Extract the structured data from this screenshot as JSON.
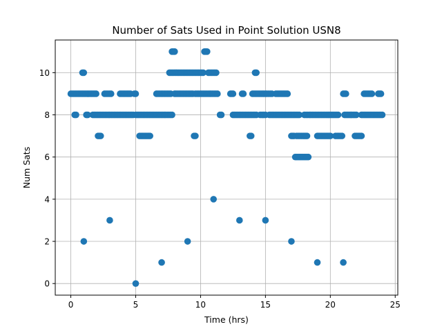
{
  "chart_data": {
    "type": "scatter",
    "title": "Number of Sats Used in Point Solution USN8",
    "xlabel": "Time (hrs)",
    "ylabel": "Num Sats",
    "xlim": [
      -1.2,
      25.2
    ],
    "ylim": [
      -0.55,
      11.55
    ],
    "xticks": [
      0,
      5,
      10,
      15,
      20,
      25
    ],
    "yticks": [
      0,
      2,
      4,
      6,
      8,
      10
    ],
    "grid": true,
    "marker_color": "#1f77b4",
    "series": [
      {
        "segments": [
          {
            "y": 9,
            "x": [
              [
                0.0,
                1.95
              ],
              [
                2.6,
                3.1
              ],
              [
                3.8,
                4.6
              ],
              [
                4.9,
                5.0
              ],
              [
                6.6,
                7.7
              ],
              [
                8.0,
                9.4
              ],
              [
                9.6,
                10.7
              ],
              [
                10.8,
                11.3
              ],
              [
                12.3,
                12.5
              ],
              [
                13.2,
                13.3
              ],
              [
                14.0,
                15.0
              ],
              [
                15.1,
                15.5
              ],
              [
                15.8,
                16.7
              ],
              [
                21.0,
                21.2
              ],
              [
                22.6,
                23.2
              ],
              [
                23.7,
                23.9
              ]
            ]
          },
          {
            "y": 8,
            "x": [
              [
                0.3,
                0.4
              ],
              [
                1.2,
                1.3
              ],
              [
                1.7,
                2.9
              ],
              [
                3.0,
                4.8
              ],
              [
                5.0,
                7.2
              ],
              [
                7.3,
                7.8
              ],
              [
                11.5,
                11.6
              ],
              [
                12.5,
                14.3
              ],
              [
                14.6,
                15.0
              ],
              [
                15.3,
                17.6
              ],
              [
                18.0,
                18.4
              ],
              [
                18.5,
                19.8
              ],
              [
                19.9,
                20.6
              ],
              [
                21.1,
                22.0
              ],
              [
                22.4,
                24.0
              ]
            ]
          },
          {
            "y": 10,
            "x": [
              [
                0.9,
                1.0
              ],
              [
                7.6,
                10.2
              ],
              [
                10.6,
                11.2
              ],
              [
                14.2,
                14.3
              ]
            ]
          },
          {
            "y": 11,
            "x": [
              [
                7.8,
                8.0
              ],
              [
                10.3,
                10.5
              ]
            ]
          },
          {
            "y": 7,
            "x": [
              [
                2.1,
                2.3
              ],
              [
                5.3,
                6.1
              ],
              [
                9.5,
                9.6
              ],
              [
                13.8,
                13.9
              ],
              [
                17.0,
                17.2
              ],
              [
                17.4,
                17.9
              ],
              [
                18.0,
                18.2
              ],
              [
                19.0,
                20.0
              ],
              [
                20.4,
                20.9
              ],
              [
                21.9,
                22.4
              ]
            ]
          },
          {
            "y": 6,
            "x": [
              [
                17.3,
                18.3
              ]
            ]
          }
        ],
        "points": [
          {
            "x": 1.0,
            "y": 2
          },
          {
            "x": 3.0,
            "y": 3
          },
          {
            "x": 5.0,
            "y": 0
          },
          {
            "x": 7.0,
            "y": 1
          },
          {
            "x": 9.0,
            "y": 2
          },
          {
            "x": 11.0,
            "y": 4
          },
          {
            "x": 13.0,
            "y": 3
          },
          {
            "x": 15.0,
            "y": 3
          },
          {
            "x": 17.0,
            "y": 2
          },
          {
            "x": 19.0,
            "y": 1
          },
          {
            "x": 21.0,
            "y": 1
          }
        ]
      }
    ]
  }
}
